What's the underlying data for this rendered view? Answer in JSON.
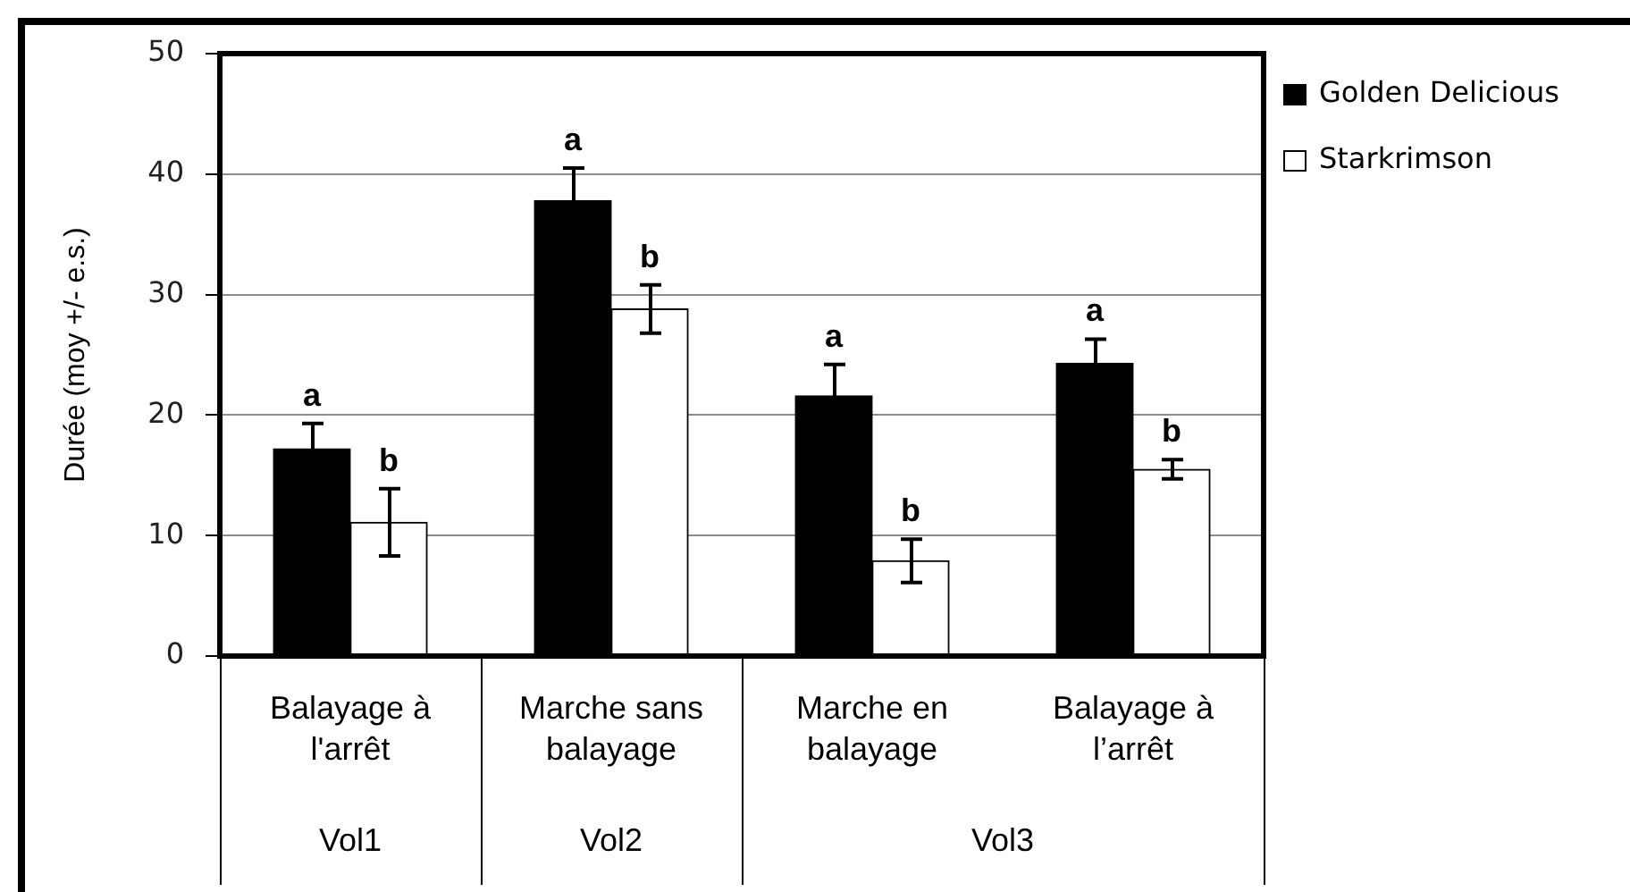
{
  "chart_data": {
    "type": "bar",
    "ylabel": "Durée (moy +/- e.s.)",
    "categories": [
      "Balayage à l'arrêt",
      "Marche sans balayage",
      "Marche en balayage",
      "Balayage à l’arrêt"
    ],
    "series": [
      {
        "name": "Golden Delicious",
        "color": "#000000",
        "values": [
          17.2,
          37.8,
          21.6,
          24.3
        ],
        "errors": [
          2.1,
          2.7,
          2.6,
          2.0
        ]
      },
      {
        "name": "Starkrimson",
        "color": "#ffffff",
        "values": [
          11.1,
          28.8,
          7.9,
          15.5
        ],
        "errors": [
          2.8,
          2.0,
          1.8,
          0.8
        ]
      }
    ],
    "ylim": [
      0,
      50
    ],
    "yticks": [
      0,
      10,
      20,
      30,
      40,
      50
    ],
    "grid": "y",
    "legend": "top right",
    "annotations": [
      {
        "text": "a",
        "x": "Balayage à l'arrêt",
        "y": 17.2
      },
      {
        "text": "b",
        "x": "Balayage à l'arrêt",
        "y": 11.1
      },
      {
        "text": "a",
        "x": "Marche sans balayage",
        "y": 37.8
      },
      {
        "text": "b",
        "x": "Marche sans balayage",
        "y": 28.8
      },
      {
        "text": "a",
        "x": "Marche en balayage",
        "y": 21.6
      },
      {
        "text": "b",
        "x": "Marche en balayage",
        "y": 7.9
      },
      {
        "text": "a",
        "x": "Balayage à l’arrêt",
        "y": 24.3
      },
      {
        "text": "b",
        "x": "Balayage à l’arrêt",
        "y": 15.5
      },
      "Vol1",
      "Vol2",
      "Vol3"
    ]
  }
}
